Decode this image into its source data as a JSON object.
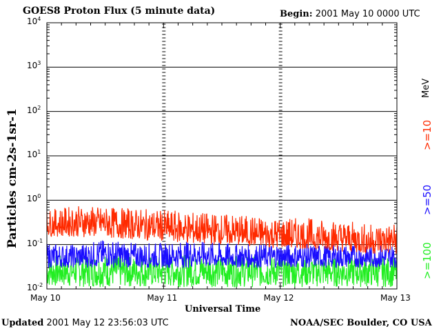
{
  "header": {
    "title": "GOES8 Proton Flux (5 minute data)",
    "begin_label": "Begin:",
    "begin_value": "2001 May 10 0000 UTC"
  },
  "footer": {
    "updated_label": "Updated",
    "updated_value": "2001 May 12 23:56:03 UTC",
    "credit": "NOAA/SEC Boulder, CO USA"
  },
  "chart_data": {
    "type": "line",
    "title": "GOES8 Proton Flux (5 minute data)",
    "xlabel": "Universal Time",
    "ylabel": "Particles cm-2s-1sr-1",
    "yscale": "log",
    "ylim": [
      0.01,
      10000
    ],
    "xlim": [
      0,
      3
    ],
    "x_ticks": [
      "May 10",
      "May 11",
      "May 12",
      "May 13"
    ],
    "y_ticks": [
      {
        "base": "10",
        "exp": "-2"
      },
      {
        "base": "10",
        "exp": "-1"
      },
      {
        "base": "10",
        "exp": "0"
      },
      {
        "base": "10",
        "exp": "1"
      },
      {
        "base": "10",
        "exp": "2"
      },
      {
        "base": "10",
        "exp": "3"
      },
      {
        "base": "10",
        "exp": "4"
      }
    ],
    "grid": true,
    "legend_placement": "right",
    "unit_label": "MeV",
    "series": [
      {
        "name": ">=10",
        "color": "#ff2a00",
        "x": [
          0,
          0.25,
          0.5,
          0.75,
          1.0,
          1.25,
          1.5,
          1.75,
          2.0,
          2.25,
          2.5,
          2.75,
          3.0
        ],
        "values": [
          0.28,
          0.3,
          0.3,
          0.25,
          0.22,
          0.2,
          0.18,
          0.16,
          0.15,
          0.13,
          0.13,
          0.11,
          0.12
        ],
        "min_values": [
          0.15,
          0.15,
          0.14,
          0.13,
          0.12,
          0.1,
          0.1,
          0.09,
          0.08,
          0.08,
          0.07,
          0.06,
          0.06
        ],
        "max_values": [
          0.6,
          0.75,
          0.7,
          0.65,
          0.6,
          0.55,
          0.5,
          0.45,
          0.4,
          0.4,
          0.35,
          0.3,
          0.3
        ]
      },
      {
        "name": ">=50",
        "color": "#1a0dff",
        "x": [
          0,
          0.25,
          0.5,
          0.75,
          1.0,
          1.25,
          1.5,
          1.75,
          2.0,
          2.25,
          2.5,
          2.75,
          3.0
        ],
        "values": [
          0.05,
          0.05,
          0.06,
          0.05,
          0.05,
          0.06,
          0.05,
          0.05,
          0.05,
          0.05,
          0.05,
          0.05,
          0.05
        ],
        "min_values": [
          0.03,
          0.03,
          0.03,
          0.03,
          0.03,
          0.03,
          0.03,
          0.03,
          0.03,
          0.03,
          0.03,
          0.03,
          0.03
        ],
        "max_values": [
          0.11,
          0.1,
          0.13,
          0.11,
          0.11,
          0.12,
          0.11,
          0.1,
          0.11,
          0.1,
          0.1,
          0.1,
          0.1
        ]
      },
      {
        "name": ">=100",
        "color": "#22ee22",
        "x": [
          0,
          0.25,
          0.5,
          0.75,
          1.0,
          1.25,
          1.5,
          1.75,
          2.0,
          2.25,
          2.5,
          2.75,
          3.0
        ],
        "values": [
          0.025,
          0.025,
          0.025,
          0.025,
          0.025,
          0.025,
          0.025,
          0.025,
          0.025,
          0.025,
          0.025,
          0.025,
          0.025
        ],
        "min_values": [
          0.011,
          0.011,
          0.011,
          0.011,
          0.011,
          0.011,
          0.011,
          0.011,
          0.011,
          0.011,
          0.011,
          0.011,
          0.011
        ],
        "max_values": [
          0.06,
          0.055,
          0.06,
          0.055,
          0.055,
          0.06,
          0.055,
          0.055,
          0.055,
          0.055,
          0.05,
          0.055,
          0.05
        ]
      }
    ]
  }
}
